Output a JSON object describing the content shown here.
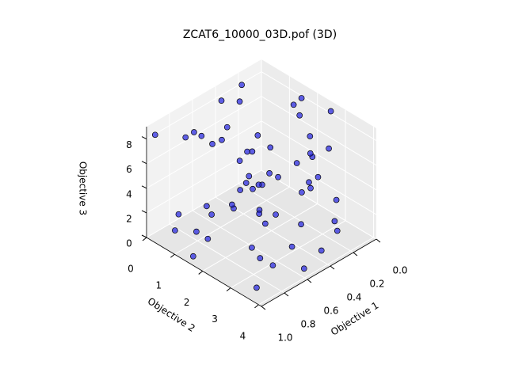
{
  "chart_data": {
    "type": "scatter3d",
    "title": "ZCAT6_10000_03D.pof (3D)",
    "x_label": "Objective 1",
    "y_label": "Objective 2",
    "z_label": "Objective 3",
    "xlim": [
      0,
      1
    ],
    "ylim": [
      0,
      4.1
    ],
    "zlim": [
      0,
      9
    ],
    "xticks": [
      {
        "value": 0,
        "label": "0.0"
      },
      0.2,
      0.4,
      0.6,
      0.8,
      {
        "value": 1,
        "label": "1.0"
      }
    ],
    "yticks": [
      0,
      1,
      2,
      3,
      4
    ],
    "zticks": [
      0,
      2,
      4,
      6,
      8
    ],
    "grid": true,
    "series": [
      {
        "color": "#2020e0",
        "x": [
          0.12,
          0.85,
          0.43,
          0.67,
          0.05,
          0.92,
          0.31,
          0.58,
          0.77,
          0.24,
          0.49,
          0.96,
          0.14,
          0.62,
          0.38,
          0.81,
          0.07,
          0.55,
          0.29,
          0.73,
          0.18,
          0.88,
          0.41,
          0.64,
          0.03,
          0.95,
          0.34,
          0.52,
          0.79,
          0.26,
          0.47,
          0.99,
          0.11,
          0.69,
          0.36,
          0.84,
          0.09,
          0.57,
          0.22,
          0.75,
          0.15,
          0.9,
          0.45,
          0.6,
          0.02,
          0.97,
          0.33,
          0.5,
          0.71,
          0.27,
          0.44,
          0.93,
          0.19,
          0.66,
          0.39,
          0.8,
          0.06,
          0.54,
          0.25,
          0.72
        ],
        "y": [
          3.2,
          0.4,
          1.9,
          2.7,
          0.8,
          3.6,
          1.2,
          3.9,
          0.2,
          2.4,
          3.1,
          1.5,
          0.6,
          2.2,
          3.7,
          1.0,
          2.9,
          0.3,
          1.7,
          3.4,
          2.1,
          0.9,
          3.5,
          1.4,
          2.6,
          0.1,
          3.8,
          2.0,
          1.1,
          2.8,
          0.5,
          3.3,
          1.6,
          2.5,
          0.7,
          3.0,
          1.8,
          3.6,
          0.2,
          2.3,
          0.9,
          2.7,
          1.3,
          3.9,
          0.4,
          2.2,
          3.1,
          1.0,
          2.6,
          0.6,
          3.5,
          1.9,
          2.8,
          0.3,
          1.5,
          3.2,
          2.0,
          0.8,
          3.7,
          1.2
        ],
        "z": [
          0.1,
          0.3,
          0.6,
          0.2,
          0.8,
          0.4,
          0.1,
          0.5,
          0.9,
          0.2,
          0.7,
          0.3,
          0.4,
          0.1,
          0.6,
          0.8,
          0.2,
          0.5,
          0.3,
          0.9,
          8.3,
          8.7,
          8.1,
          8.9,
          8.5,
          8.2,
          8.8,
          8.4,
          8.6,
          8.0,
          8.9,
          8.3,
          8.1,
          8.7,
          8.5,
          8.2,
          8.8,
          8.6,
          8.4,
          8.0,
          1.8,
          5.5,
          3.2,
          6.8,
          2.5,
          4.7,
          7.4,
          1.3,
          5.9,
          3.8,
          6.2,
          2.1,
          4.3,
          7.1,
          3.0,
          5.2,
          1.6,
          6.5,
          4.0,
          7.7
        ]
      }
    ]
  }
}
